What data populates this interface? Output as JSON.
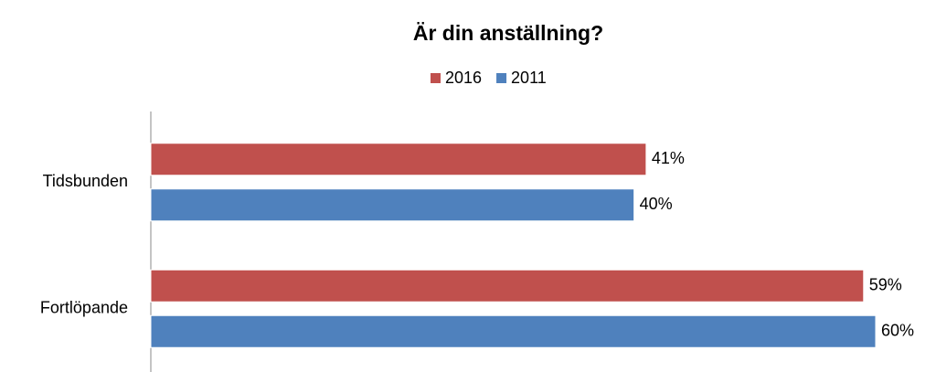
{
  "chart_data": {
    "type": "hbar",
    "title": "Är din anställning?",
    "categories": [
      "Tidsbunden",
      "Fortlöpande"
    ],
    "series": [
      {
        "name": "2016",
        "color": "#c0504d",
        "values": [
          41,
          59
        ],
        "value_labels": [
          "41%",
          "59%"
        ]
      },
      {
        "name": "2011",
        "color": "#4f81bd",
        "values": [
          40,
          60
        ],
        "value_labels": [
          "40%",
          "60%"
        ]
      }
    ],
    "xlim": [
      0,
      60
    ],
    "legend": "top"
  }
}
